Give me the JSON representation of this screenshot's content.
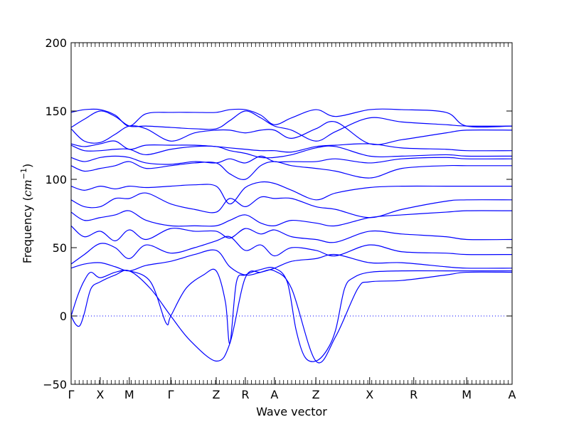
{
  "chart_data": {
    "type": "line",
    "xlabel": "Wave vector",
    "ylabel_text": "Frequency (",
    "ylabel_unit": "cm",
    "ylabel_exp": "−1",
    "ylabel_close": ")",
    "ylim": [
      -50,
      200
    ],
    "xlim": [
      0,
      1
    ],
    "yticks": [
      -50,
      0,
      50,
      100,
      150,
      200
    ],
    "ytick_labels": [
      "−50",
      "0",
      "50",
      "100",
      "150",
      "200"
    ],
    "hline_y": 0,
    "grid": false,
    "line_color": "#0000ff",
    "zero_line_color": "#0000ff",
    "x_points": [
      {
        "label": "Γ",
        "x": 0.0
      },
      {
        "label": "X",
        "x": 0.066
      },
      {
        "label": "M",
        "x": 0.132
      },
      {
        "label": "Γ",
        "x": 0.226
      },
      {
        "label": "Z",
        "x": 0.329
      },
      {
        "label": "R",
        "x": 0.395
      },
      {
        "label": "A",
        "x": 0.461
      },
      {
        "label": "Z",
        "x": 0.555
      },
      {
        "label": "X",
        "x": 0.677
      },
      {
        "label": "R",
        "x": 0.777
      },
      {
        "label": "M",
        "x": 0.897
      },
      {
        "label": "A",
        "x": 1.0
      }
    ],
    "series": [
      {
        "x": [
          0,
          0.01,
          0.02,
          0.03,
          0.045,
          0.066,
          0.1,
          0.132,
          0.18,
          0.226,
          0.27,
          0.329,
          0.36,
          0.395,
          0.43,
          0.461,
          0.5,
          0.555,
          0.6,
          0.65,
          0.677,
          0.75,
          0.85,
          0.897,
          1.0
        ],
        "y": [
          0,
          -6,
          -7,
          2,
          20,
          25,
          30,
          33,
          20,
          0,
          -18,
          -33,
          -20,
          28,
          32,
          33,
          20,
          -33,
          -15,
          20,
          25,
          26,
          30,
          32,
          32
        ]
      },
      {
        "x": [
          0,
          0.015,
          0.03,
          0.045,
          0.066,
          0.1,
          0.132,
          0.18,
          0.215,
          0.226,
          0.26,
          0.3,
          0.329,
          0.35,
          0.36,
          0.375,
          0.395,
          0.43,
          0.461,
          0.49,
          0.51,
          0.53,
          0.555,
          0.58,
          0.6,
          0.62,
          0.64,
          0.677,
          0.75,
          0.85,
          0.897,
          1.0
        ],
        "y": [
          0,
          15,
          26,
          32,
          28,
          32,
          33,
          25,
          -5,
          0,
          20,
          30,
          33,
          10,
          -20,
          25,
          30,
          34,
          35,
          25,
          -10,
          -30,
          -33,
          -25,
          -10,
          20,
          28,
          32,
          33,
          33,
          33,
          33
        ]
      },
      {
        "x": [
          0,
          0.03,
          0.066,
          0.1,
          0.132,
          0.17,
          0.226,
          0.28,
          0.329,
          0.36,
          0.395,
          0.43,
          0.461,
          0.5,
          0.555,
          0.6,
          0.677,
          0.75,
          0.85,
          0.897,
          1.0
        ],
        "y": [
          35,
          38,
          39,
          36,
          33,
          37,
          40,
          45,
          48,
          36,
          30,
          32,
          35,
          40,
          42,
          45,
          39,
          39,
          36,
          35,
          35
        ]
      },
      {
        "x": [
          0,
          0.03,
          0.066,
          0.1,
          0.132,
          0.17,
          0.226,
          0.28,
          0.329,
          0.36,
          0.395,
          0.43,
          0.461,
          0.5,
          0.555,
          0.6,
          0.677,
          0.75,
          0.85,
          0.897,
          1.0
        ],
        "y": [
          38,
          45,
          53,
          50,
          42,
          52,
          46,
          50,
          55,
          58,
          48,
          52,
          44,
          50,
          48,
          44,
          52,
          47,
          46,
          45,
          45
        ]
      },
      {
        "x": [
          0,
          0.03,
          0.066,
          0.1,
          0.132,
          0.17,
          0.226,
          0.28,
          0.329,
          0.36,
          0.395,
          0.43,
          0.461,
          0.5,
          0.555,
          0.6,
          0.677,
          0.75,
          0.85,
          0.897,
          1.0
        ],
        "y": [
          66,
          58,
          62,
          55,
          63,
          56,
          64,
          62,
          62,
          57,
          64,
          60,
          63,
          58,
          56,
          54,
          62,
          60,
          58,
          56,
          56
        ]
      },
      {
        "x": [
          0,
          0.03,
          0.066,
          0.1,
          0.132,
          0.17,
          0.226,
          0.28,
          0.329,
          0.36,
          0.395,
          0.43,
          0.461,
          0.5,
          0.555,
          0.6,
          0.677,
          0.75,
          0.85,
          0.897,
          1.0
        ],
        "y": [
          76,
          70,
          72,
          74,
          77,
          70,
          66,
          66,
          66,
          70,
          74,
          68,
          66,
          70,
          68,
          66,
          72,
          74,
          76,
          77,
          77
        ]
      },
      {
        "x": [
          0,
          0.03,
          0.066,
          0.1,
          0.132,
          0.17,
          0.226,
          0.28,
          0.329,
          0.36,
          0.395,
          0.43,
          0.461,
          0.5,
          0.555,
          0.6,
          0.677,
          0.75,
          0.85,
          0.897,
          1.0
        ],
        "y": [
          85,
          80,
          80,
          86,
          86,
          90,
          82,
          78,
          76,
          86,
          80,
          87,
          86,
          86,
          80,
          78,
          72,
          78,
          84,
          85,
          85
        ]
      },
      {
        "x": [
          0,
          0.03,
          0.066,
          0.1,
          0.132,
          0.17,
          0.226,
          0.28,
          0.329,
          0.36,
          0.395,
          0.43,
          0.461,
          0.5,
          0.555,
          0.6,
          0.677,
          0.75,
          0.85,
          0.897,
          1.0
        ],
        "y": [
          95,
          92,
          95,
          93,
          95,
          94,
          95,
          96,
          95,
          82,
          94,
          98,
          97,
          92,
          85,
          90,
          94,
          95,
          95,
          95,
          95
        ]
      },
      {
        "x": [
          0,
          0.03,
          0.066,
          0.1,
          0.132,
          0.17,
          0.226,
          0.28,
          0.329,
          0.36,
          0.395,
          0.43,
          0.461,
          0.5,
          0.555,
          0.6,
          0.677,
          0.75,
          0.85,
          0.897,
          1.0
        ],
        "y": [
          110,
          106,
          108,
          110,
          113,
          108,
          110,
          112,
          112,
          104,
          100,
          110,
          113,
          110,
          108,
          106,
          101,
          108,
          110,
          110,
          110
        ]
      },
      {
        "x": [
          0,
          0.03,
          0.066,
          0.1,
          0.132,
          0.17,
          0.226,
          0.28,
          0.329,
          0.36,
          0.395,
          0.43,
          0.461,
          0.5,
          0.555,
          0.6,
          0.677,
          0.75,
          0.85,
          0.897,
          1.0
        ],
        "y": [
          116,
          113,
          116,
          117,
          116,
          112,
          111,
          113,
          112,
          115,
          112,
          117,
          113,
          113,
          113,
          115,
          112,
          115,
          116,
          115,
          115
        ]
      },
      {
        "x": [
          0,
          0.03,
          0.066,
          0.1,
          0.132,
          0.17,
          0.226,
          0.28,
          0.329,
          0.36,
          0.395,
          0.43,
          0.461,
          0.5,
          0.555,
          0.6,
          0.677,
          0.75,
          0.85,
          0.897,
          1.0
        ],
        "y": [
          125,
          121,
          121,
          122,
          122,
          118,
          122,
          124,
          124,
          121,
          119,
          116,
          116,
          118,
          123,
          124,
          117,
          117,
          118,
          117,
          117
        ]
      },
      {
        "x": [
          0,
          0.03,
          0.066,
          0.1,
          0.132,
          0.17,
          0.226,
          0.28,
          0.329,
          0.36,
          0.395,
          0.43,
          0.461,
          0.5,
          0.555,
          0.6,
          0.677,
          0.75,
          0.85,
          0.897,
          1.0
        ],
        "y": [
          126,
          124,
          126,
          128,
          122,
          125,
          125,
          125,
          124,
          123,
          122,
          121,
          121,
          120,
          124,
          125,
          126,
          123,
          122,
          121,
          121
        ]
      },
      {
        "x": [
          0,
          0.03,
          0.066,
          0.1,
          0.132,
          0.17,
          0.226,
          0.28,
          0.329,
          0.36,
          0.395,
          0.43,
          0.461,
          0.5,
          0.555,
          0.6,
          0.677,
          0.75,
          0.85,
          0.897,
          1.0
        ],
        "y": [
          137,
          128,
          127,
          133,
          139,
          137,
          128,
          134,
          136,
          136,
          134,
          136,
          136,
          130,
          137,
          142,
          126,
          129,
          134,
          136,
          136
        ]
      },
      {
        "x": [
          0,
          0.03,
          0.066,
          0.1,
          0.132,
          0.17,
          0.226,
          0.28,
          0.329,
          0.36,
          0.395,
          0.43,
          0.461,
          0.5,
          0.555,
          0.6,
          0.677,
          0.75,
          0.85,
          0.897,
          1.0
        ],
        "y": [
          138,
          144,
          150,
          146,
          139,
          139,
          138,
          137,
          137,
          143,
          150,
          145,
          139,
          136,
          128,
          135,
          145,
          142,
          140,
          139,
          139
        ]
      },
      {
        "x": [
          0,
          0.03,
          0.066,
          0.1,
          0.132,
          0.17,
          0.226,
          0.28,
          0.329,
          0.36,
          0.395,
          0.43,
          0.461,
          0.5,
          0.555,
          0.6,
          0.677,
          0.75,
          0.85,
          0.897,
          1.0
        ],
        "y": [
          149,
          151,
          151,
          147,
          139,
          148,
          149,
          149,
          149,
          151,
          151,
          147,
          140,
          145,
          151,
          146,
          151,
          151,
          149,
          139,
          139
        ]
      }
    ]
  }
}
